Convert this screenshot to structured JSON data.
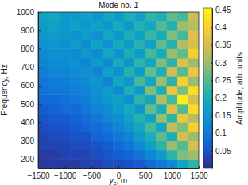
{
  "chart_data": {
    "type": "heatmap",
    "title": "Mode no. 1",
    "xlabel": "yc, m",
    "ylabel": "Frequency, Hz",
    "xlim": [
      -1500,
      1500
    ],
    "ylim": [
      150,
      1000
    ],
    "xticks": [
      {
        "value": -1500,
        "label": "−1500"
      },
      {
        "value": -1000,
        "label": "−1000"
      },
      {
        "value": -500,
        "label": "−500"
      },
      0,
      500,
      1000,
      1500
    ],
    "yticks": [
      200,
      300,
      400,
      500,
      600,
      700,
      800,
      900,
      1000
    ],
    "x_bins": [
      -1500,
      -1300,
      -1100,
      -900,
      -700,
      -500,
      -300,
      -100,
      100,
      300,
      500,
      700,
      900,
      1100,
      1300,
      1500
    ],
    "y_bins": [
      150,
      200,
      250,
      300,
      350,
      400,
      450,
      500,
      550,
      600,
      650,
      700,
      750,
      800,
      850,
      900,
      950,
      1000
    ],
    "values": [
      [
        0.02,
        0.02,
        0.02,
        0.02,
        0.03,
        0.03,
        0.04,
        0.04,
        0.05,
        0.06,
        0.08,
        0.1,
        0.13,
        0.18,
        0.22
      ],
      [
        0.02,
        0.02,
        0.03,
        0.03,
        0.03,
        0.04,
        0.05,
        0.06,
        0.07,
        0.09,
        0.12,
        0.16,
        0.22,
        0.28,
        0.3
      ],
      [
        0.03,
        0.03,
        0.03,
        0.04,
        0.04,
        0.05,
        0.06,
        0.08,
        0.1,
        0.13,
        0.17,
        0.22,
        0.3,
        0.25,
        0.35
      ],
      [
        0.03,
        0.04,
        0.04,
        0.05,
        0.05,
        0.07,
        0.08,
        0.1,
        0.12,
        0.16,
        0.2,
        0.26,
        0.2,
        0.35,
        0.3
      ],
      [
        0.04,
        0.05,
        0.05,
        0.06,
        0.07,
        0.08,
        0.1,
        0.12,
        0.15,
        0.18,
        0.24,
        0.18,
        0.33,
        0.28,
        0.4
      ],
      [
        0.05,
        0.06,
        0.06,
        0.07,
        0.08,
        0.1,
        0.12,
        0.14,
        0.17,
        0.21,
        0.17,
        0.3,
        0.22,
        0.38,
        0.32
      ],
      [
        0.06,
        0.07,
        0.08,
        0.08,
        0.1,
        0.12,
        0.13,
        0.16,
        0.19,
        0.15,
        0.26,
        0.2,
        0.36,
        0.25,
        0.42
      ],
      [
        0.08,
        0.08,
        0.09,
        0.1,
        0.11,
        0.13,
        0.15,
        0.17,
        0.14,
        0.22,
        0.18,
        0.32,
        0.24,
        0.44,
        0.35
      ],
      [
        0.09,
        0.1,
        0.1,
        0.11,
        0.12,
        0.14,
        0.16,
        0.13,
        0.2,
        0.16,
        0.28,
        0.2,
        0.38,
        0.28,
        0.42
      ],
      [
        0.1,
        0.11,
        0.11,
        0.12,
        0.13,
        0.15,
        0.12,
        0.18,
        0.15,
        0.24,
        0.18,
        0.3,
        0.22,
        0.4,
        0.3
      ],
      [
        0.11,
        0.12,
        0.12,
        0.13,
        0.14,
        0.12,
        0.17,
        0.14,
        0.21,
        0.16,
        0.26,
        0.2,
        0.34,
        0.25,
        0.38
      ],
      [
        0.12,
        0.13,
        0.13,
        0.14,
        0.12,
        0.16,
        0.13,
        0.19,
        0.15,
        0.22,
        0.18,
        0.28,
        0.22,
        0.36,
        0.3
      ],
      [
        0.13,
        0.14,
        0.14,
        0.13,
        0.15,
        0.13,
        0.18,
        0.14,
        0.2,
        0.16,
        0.24,
        0.19,
        0.3,
        0.26,
        0.4
      ],
      [
        0.14,
        0.15,
        0.14,
        0.16,
        0.13,
        0.17,
        0.14,
        0.19,
        0.16,
        0.21,
        0.17,
        0.26,
        0.21,
        0.32,
        0.35
      ],
      [
        0.15,
        0.16,
        0.15,
        0.14,
        0.16,
        0.14,
        0.18,
        0.15,
        0.2,
        0.17,
        0.23,
        0.19,
        0.28,
        0.24,
        0.36
      ],
      [
        0.16,
        0.17,
        0.15,
        0.17,
        0.15,
        0.17,
        0.15,
        0.19,
        0.16,
        0.21,
        0.18,
        0.25,
        0.21,
        0.3,
        0.32
      ],
      [
        0.17,
        0.18,
        0.16,
        0.16,
        0.17,
        0.15,
        0.18,
        0.16,
        0.2,
        0.17,
        0.22,
        0.2,
        0.26,
        0.24,
        0.34
      ]
    ],
    "colorbar": {
      "label": "Amplitude, arb. units",
      "range": [
        0,
        0.455
      ],
      "ticks": [
        0.05,
        0.1,
        0.15,
        0.2,
        0.25,
        0.3,
        0.35,
        0.4,
        0.45
      ]
    }
  }
}
